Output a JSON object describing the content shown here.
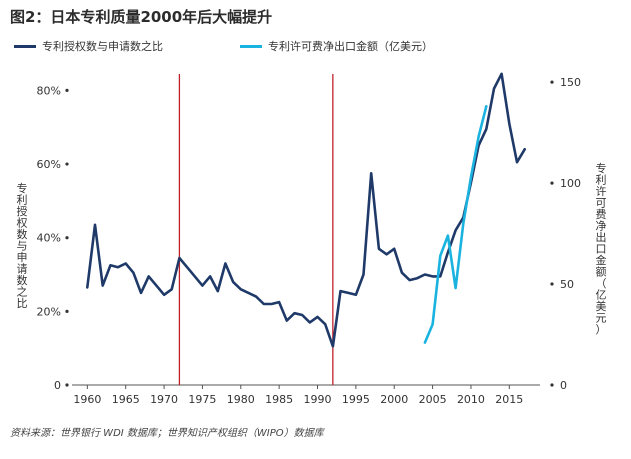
{
  "title": "图2：日本专利质量2000年后大幅提升",
  "source": "资料来源：世界银行 WDI 数据库；世界知识产权组织（WIPO）数据库",
  "colors": {
    "series1": "#1f3a68",
    "series2": "#1ab3e0",
    "vline": "#c0202a"
  },
  "chart_data": {
    "type": "line",
    "title": "图2：日本专利质量2000年后大幅提升",
    "xlabel": "",
    "ylabel_left": "专利授权数与申请数之比",
    "ylabel_right": "专利许可费净出口金额（亿美元）",
    "xlim": [
      1958,
      2019
    ],
    "ylim_left": [
      0,
      85
    ],
    "ylim_right": [
      0,
      155
    ],
    "x_ticks": [
      "1960",
      "1965",
      "1970",
      "1975",
      "1980",
      "1985",
      "1990",
      "1995",
      "2000",
      "2005",
      "2010",
      "2015"
    ],
    "y_left_ticks": [
      "0",
      "20%",
      "40%",
      "60%",
      "80%"
    ],
    "y_right_ticks": [
      "0",
      "50",
      "100",
      "150"
    ],
    "vertical_lines": [
      1972,
      1992
    ],
    "grid": false,
    "legend_position": "top",
    "series": [
      {
        "name": "专利授权数与申请数之比",
        "axis": "left",
        "points": [
          [
            1960,
            26.5
          ],
          [
            1961,
            43.5
          ],
          [
            1962,
            27
          ],
          [
            1963,
            32.5
          ],
          [
            1964,
            32
          ],
          [
            1965,
            33
          ],
          [
            1966,
            30.5
          ],
          [
            1967,
            25
          ],
          [
            1968,
            29.5
          ],
          [
            1969,
            27
          ],
          [
            1970,
            24.5
          ],
          [
            1971,
            26
          ],
          [
            1972,
            34.5
          ],
          [
            1973,
            32
          ],
          [
            1974,
            29.5
          ],
          [
            1975,
            27
          ],
          [
            1976,
            29.5
          ],
          [
            1977,
            25.5
          ],
          [
            1978,
            33
          ],
          [
            1979,
            28
          ],
          [
            1980,
            26
          ],
          [
            1981,
            25
          ],
          [
            1982,
            24
          ],
          [
            1983,
            22
          ],
          [
            1984,
            22
          ],
          [
            1985,
            22.5
          ],
          [
            1986,
            17.5
          ],
          [
            1987,
            19.5
          ],
          [
            1988,
            19
          ],
          [
            1989,
            17
          ],
          [
            1990,
            18.5
          ],
          [
            1991,
            16.5
          ],
          [
            1992,
            10.5
          ],
          [
            1993,
            25.5
          ],
          [
            1994,
            25
          ],
          [
            1995,
            24.5
          ],
          [
            1996,
            30
          ],
          [
            1997,
            57.5
          ],
          [
            1998,
            37
          ],
          [
            1999,
            35.5
          ],
          [
            2000,
            37
          ],
          [
            2001,
            30.5
          ],
          [
            2002,
            28.5
          ],
          [
            2003,
            29
          ],
          [
            2004,
            30
          ],
          [
            2005,
            29.5
          ],
          [
            2006,
            29.5
          ],
          [
            2007,
            36
          ],
          [
            2008,
            42
          ],
          [
            2009,
            45.5
          ],
          [
            2010,
            55
          ],
          [
            2011,
            65
          ],
          [
            2012,
            69.5
          ],
          [
            2013,
            80.5
          ],
          [
            2014,
            84.5
          ],
          [
            2015,
            71
          ],
          [
            2016,
            60.5
          ],
          [
            2017,
            64
          ]
        ]
      },
      {
        "name": "专利许可费净出口金额（亿美元）",
        "axis": "right",
        "points": [
          [
            2004,
            21
          ],
          [
            2005,
            30
          ],
          [
            2006,
            64
          ],
          [
            2007,
            74
          ],
          [
            2008,
            48
          ],
          [
            2009,
            80
          ],
          [
            2010,
            103
          ],
          [
            2011,
            123
          ],
          [
            2012,
            138
          ]
        ]
      }
    ]
  }
}
